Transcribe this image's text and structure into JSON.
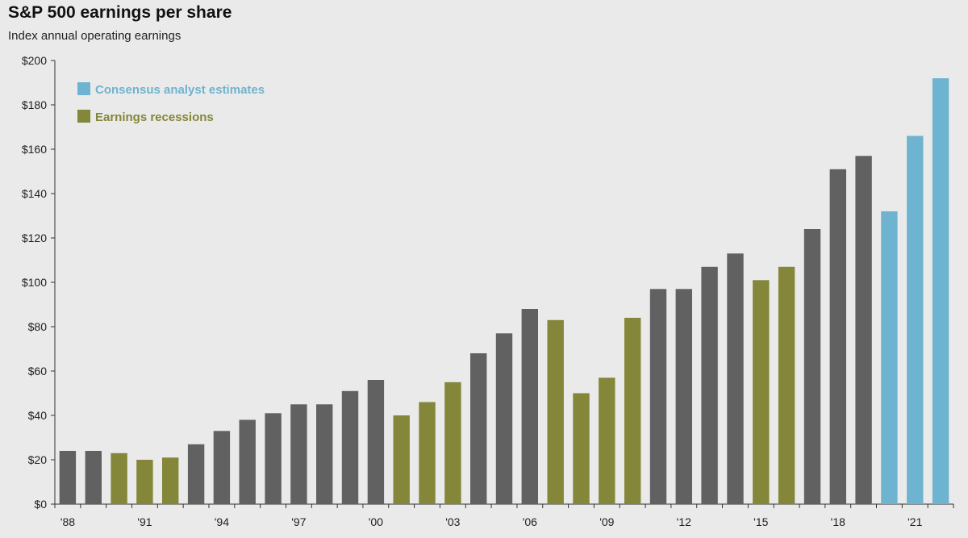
{
  "header": {
    "title": "S&P 500 earnings per share",
    "subtitle": "Index annual operating earnings"
  },
  "colors": {
    "regular": "#616161",
    "recession": "#84863a",
    "estimate": "#6eb3cf",
    "legend_estimate_text": "#6eb3cf",
    "legend_recession_text": "#84863a"
  },
  "chart_data": {
    "type": "bar",
    "title": "S&P 500 earnings per share",
    "subtitle": "Index annual operating earnings",
    "xlabel": "",
    "ylabel": "",
    "ylim": [
      0,
      200
    ],
    "y_ticks": [
      "$0",
      "$20",
      "$40",
      "$60",
      "$80",
      "$100",
      "$120",
      "$140",
      "$160",
      "$180",
      "$200"
    ],
    "x_tick_labels": [
      {
        "label": "'88",
        "index": 0
      },
      {
        "label": "'91",
        "index": 3
      },
      {
        "label": "'94",
        "index": 6
      },
      {
        "label": "'97",
        "index": 9
      },
      {
        "label": "'00",
        "index": 12
      },
      {
        "label": "'03",
        "index": 15
      },
      {
        "label": "'06",
        "index": 18
      },
      {
        "label": "'09",
        "index": 21
      },
      {
        "label": "'12",
        "index": 24
      },
      {
        "label": "'15",
        "index": 27
      },
      {
        "label": "'18",
        "index": 30
      },
      {
        "label": "'21",
        "index": 33
      }
    ],
    "categories": [
      "1988",
      "1989",
      "1990",
      "1991",
      "1992",
      "1993",
      "1994",
      "1995",
      "1996",
      "1997",
      "1998",
      "1999",
      "2000",
      "2001",
      "2002",
      "2003",
      "2004",
      "2005",
      "2006",
      "2007",
      "2008",
      "2009",
      "2010",
      "2011",
      "2012",
      "2013",
      "2014",
      "2015",
      "2016",
      "2017",
      "2018",
      "2019",
      "2020",
      "2021",
      "2022"
    ],
    "values": [
      24,
      24,
      23,
      20,
      21,
      27,
      33,
      38,
      41,
      45,
      45,
      51,
      56,
      40,
      46,
      55,
      68,
      77,
      88,
      83,
      50,
      57,
      84,
      97,
      97,
      107,
      113,
      101,
      107,
      124,
      151,
      157,
      132,
      166,
      192
    ],
    "bar_type": [
      "regular",
      "regular",
      "recession",
      "recession",
      "recession",
      "regular",
      "regular",
      "regular",
      "regular",
      "regular",
      "regular",
      "regular",
      "regular",
      "recession",
      "recession",
      "recession",
      "regular",
      "regular",
      "regular",
      "recession",
      "recession",
      "recession",
      "recession",
      "regular",
      "regular",
      "regular",
      "regular",
      "recession",
      "recession",
      "regular",
      "regular",
      "regular",
      "estimate",
      "estimate",
      "estimate"
    ],
    "legend": [
      {
        "name": "Consensus analyst estimates",
        "key": "estimate"
      },
      {
        "name": "Earnings recessions",
        "key": "recession"
      }
    ],
    "legend_position": "top-left",
    "grid": false
  }
}
